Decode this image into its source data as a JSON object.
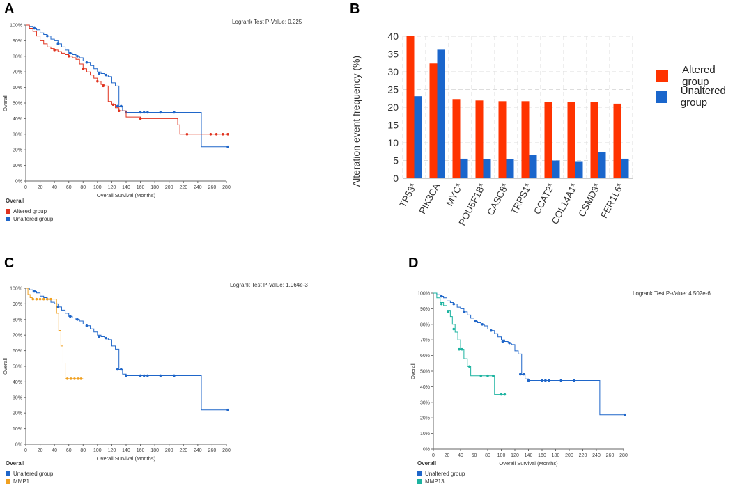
{
  "colors": {
    "altered": "#e0321e",
    "unaltered": "#1f66c9",
    "mmp1": "#f0a020",
    "mmp13": "#1cb3a0",
    "bar_altered": "#ff3300",
    "bar_unaltered": "#1a66cc",
    "grid": "#dddddd",
    "axis": "#666666"
  },
  "panels": {
    "A": {
      "letter": "A",
      "pvalue": "Logrank Test P-Value: 0.225",
      "legend_title": "Overall",
      "legend": [
        {
          "label": "Altered group",
          "color_key": "altered"
        },
        {
          "label": "Unaltered group",
          "color_key": "unaltered"
        }
      ]
    },
    "B": {
      "letter": "B",
      "legend": [
        {
          "label": "Altered group",
          "color_key": "bar_altered"
        },
        {
          "label": "Unaltered group",
          "color_key": "bar_unaltered"
        }
      ]
    },
    "C": {
      "letter": "C",
      "pvalue": "Logrank Test P-Value: 1.964e-3",
      "legend_title": "Overall",
      "legend": [
        {
          "label": "Unaltered group",
          "color_key": "unaltered"
        },
        {
          "label": "MMP1",
          "color_key": "mmp1"
        }
      ]
    },
    "D": {
      "letter": "D",
      "pvalue": "Logrank Test P-Value: 4.502e-6",
      "legend_title": "Overall",
      "legend": [
        {
          "label": "Unaltered group",
          "color_key": "unaltered"
        },
        {
          "label": "MMP13",
          "color_key": "mmp13"
        }
      ]
    }
  },
  "chart_data": [
    {
      "id": "A",
      "type": "line",
      "title": "",
      "xlabel": "Overall Survival (Months)",
      "ylabel": "Overall",
      "xlim": [
        0,
        280
      ],
      "ylim": [
        0,
        100
      ],
      "xticks": [
        0,
        20,
        40,
        60,
        80,
        100,
        120,
        140,
        160,
        180,
        200,
        220,
        240,
        260,
        280
      ],
      "yticks": [
        0,
        10,
        20,
        30,
        40,
        50,
        60,
        70,
        80,
        90,
        100
      ],
      "ytick_suffix": "%",
      "series": [
        {
          "name": "Unaltered group",
          "color_key": "unaltered",
          "x": [
            0,
            5,
            10,
            15,
            20,
            25,
            30,
            35,
            40,
            45,
            50,
            55,
            60,
            65,
            70,
            75,
            80,
            85,
            90,
            95,
            100,
            105,
            110,
            115,
            120,
            125,
            130,
            135,
            140,
            160,
            200,
            245,
            282
          ],
          "y": [
            100,
            99,
            98,
            97,
            95,
            94,
            93,
            91,
            90,
            88,
            86,
            84,
            82,
            81,
            80,
            79,
            77,
            76,
            74,
            72,
            70,
            69,
            68,
            67,
            63,
            61,
            48,
            45,
            44,
            44,
            44,
            22,
            22
          ],
          "censors": [
            [
              12,
              98
            ],
            [
              30,
              93
            ],
            [
              45,
              88
            ],
            [
              62,
              82
            ],
            [
              72,
              80
            ],
            [
              85,
              76
            ],
            [
              102,
              69
            ],
            [
              112,
              68
            ],
            [
              128,
              48
            ],
            [
              133,
              48
            ],
            [
              140,
              44
            ],
            [
              160,
              44
            ],
            [
              165,
              44
            ],
            [
              170,
              44
            ],
            [
              188,
              44
            ],
            [
              207,
              44
            ],
            [
              282,
              22
            ]
          ]
        },
        {
          "name": "Altered group",
          "color_key": "altered",
          "x": [
            0,
            5,
            10,
            15,
            20,
            25,
            30,
            35,
            40,
            45,
            50,
            55,
            60,
            65,
            70,
            75,
            80,
            85,
            90,
            95,
            100,
            105,
            110,
            115,
            120,
            125,
            130,
            140,
            160,
            200,
            212,
            215,
            245,
            282
          ],
          "y": [
            100,
            98,
            96,
            93,
            90,
            88,
            86,
            85,
            84,
            83,
            82,
            81,
            80,
            79,
            78,
            75,
            72,
            70,
            68,
            66,
            64,
            62,
            61,
            51,
            49,
            47,
            45,
            41,
            40,
            40,
            36,
            30,
            30,
            30
          ],
          "censors": [
            [
              40,
              84
            ],
            [
              60,
              80
            ],
            [
              80,
              72
            ],
            [
              100,
              64
            ],
            [
              108,
              61
            ],
            [
              122,
              49
            ],
            [
              130,
              45
            ],
            [
              160,
              40
            ],
            [
              225,
              30
            ],
            [
              258,
              30
            ],
            [
              266,
              30
            ],
            [
              275,
              30
            ],
            [
              282,
              30
            ]
          ]
        }
      ]
    },
    {
      "id": "B",
      "type": "bar",
      "title": "",
      "xlabel": "",
      "ylabel": "Alteration event frequency (%)",
      "ylim": [
        0,
        40
      ],
      "yticks": [
        0,
        5,
        10,
        15,
        20,
        25,
        30,
        35,
        40
      ],
      "categories": [
        "TP53*",
        "PIK3CA",
        "MYC*",
        "POU5F1B*",
        "CASC8*",
        "TRPS1*",
        "CCAT2*",
        "COL14A1*",
        "CSMD3*",
        "FER1L6*"
      ],
      "series": [
        {
          "name": "Altered group",
          "color_key": "bar_altered",
          "values": [
            40.0,
            32.3,
            22.3,
            21.9,
            21.7,
            21.7,
            21.5,
            21.4,
            21.4,
            21.0
          ]
        },
        {
          "name": "Unaltered group",
          "color_key": "bar_unaltered",
          "values": [
            23.1,
            36.2,
            5.5,
            5.3,
            5.3,
            6.5,
            5.0,
            4.8,
            7.4,
            5.5
          ]
        }
      ]
    },
    {
      "id": "C",
      "type": "line",
      "title": "",
      "xlabel": "Overall Survival (Months)",
      "ylabel": "Overall",
      "xlim": [
        0,
        280
      ],
      "ylim": [
        0,
        100
      ],
      "xticks": [
        0,
        20,
        40,
        60,
        80,
        100,
        120,
        140,
        160,
        180,
        200,
        220,
        240,
        260,
        280
      ],
      "yticks": [
        0,
        10,
        20,
        30,
        40,
        50,
        60,
        70,
        80,
        90,
        100
      ],
      "ytick_suffix": "%",
      "series": [
        {
          "name": "Unaltered group",
          "color_key": "unaltered",
          "x": [
            0,
            5,
            10,
            15,
            20,
            25,
            30,
            35,
            40,
            45,
            50,
            55,
            60,
            65,
            70,
            75,
            80,
            85,
            90,
            95,
            100,
            105,
            110,
            115,
            120,
            125,
            130,
            135,
            140,
            160,
            200,
            245,
            282
          ],
          "y": [
            100,
            99,
            98,
            97,
            95,
            94,
            93,
            91,
            90,
            88,
            86,
            84,
            82,
            81,
            80,
            79,
            77,
            76,
            74,
            72,
            70,
            69,
            68,
            67,
            63,
            61,
            48,
            45,
            44,
            44,
            44,
            22,
            22
          ],
          "censors": [
            [
              12,
              98
            ],
            [
              30,
              93
            ],
            [
              45,
              88
            ],
            [
              62,
              82
            ],
            [
              72,
              80
            ],
            [
              85,
              76
            ],
            [
              102,
              69
            ],
            [
              112,
              68
            ],
            [
              128,
              48
            ],
            [
              133,
              48
            ],
            [
              140,
              44
            ],
            [
              160,
              44
            ],
            [
              165,
              44
            ],
            [
              170,
              44
            ],
            [
              188,
              44
            ],
            [
              207,
              44
            ],
            [
              282,
              22
            ]
          ]
        },
        {
          "name": "MMP1",
          "color_key": "mmp1",
          "x": [
            0,
            3,
            6,
            9,
            40,
            43,
            46,
            49,
            52,
            55,
            80
          ],
          "y": [
            100,
            96,
            94,
            93,
            93,
            84,
            73,
            63,
            52,
            42,
            42
          ],
          "censors": [
            [
              10,
              93
            ],
            [
              15,
              93
            ],
            [
              20,
              93
            ],
            [
              25,
              93
            ],
            [
              30,
              93
            ],
            [
              35,
              93
            ],
            [
              58,
              42
            ],
            [
              63,
              42
            ],
            [
              68,
              42
            ],
            [
              73,
              42
            ],
            [
              77,
              42
            ]
          ]
        }
      ]
    },
    {
      "id": "D",
      "type": "line",
      "title": "",
      "xlabel": "Overall Survival (Months)",
      "ylabel": "Overall",
      "xlim": [
        0,
        280
      ],
      "ylim": [
        0,
        100
      ],
      "xticks": [
        0,
        20,
        40,
        60,
        80,
        100,
        120,
        140,
        160,
        180,
        200,
        220,
        240,
        260,
        280
      ],
      "yticks": [
        0,
        10,
        20,
        30,
        40,
        50,
        60,
        70,
        80,
        90,
        100
      ],
      "ytick_suffix": "%",
      "series": [
        {
          "name": "Unaltered group",
          "color_key": "unaltered",
          "x": [
            0,
            5,
            10,
            15,
            20,
            25,
            30,
            35,
            40,
            45,
            50,
            55,
            60,
            65,
            70,
            75,
            80,
            85,
            90,
            95,
            100,
            105,
            110,
            115,
            120,
            125,
            130,
            135,
            140,
            160,
            200,
            245,
            282
          ],
          "y": [
            100,
            99,
            98,
            97,
            95,
            94,
            93,
            91,
            90,
            88,
            86,
            84,
            82,
            81,
            80,
            79,
            77,
            76,
            74,
            72,
            70,
            69,
            68,
            67,
            63,
            61,
            48,
            45,
            44,
            44,
            44,
            22,
            22
          ],
          "censors": [
            [
              12,
              98
            ],
            [
              30,
              93
            ],
            [
              45,
              88
            ],
            [
              62,
              82
            ],
            [
              72,
              80
            ],
            [
              85,
              76
            ],
            [
              102,
              69
            ],
            [
              112,
              68
            ],
            [
              128,
              48
            ],
            [
              133,
              48
            ],
            [
              140,
              44
            ],
            [
              160,
              44
            ],
            [
              165,
              44
            ],
            [
              170,
              44
            ],
            [
              188,
              44
            ],
            [
              207,
              44
            ],
            [
              282,
              22
            ]
          ]
        },
        {
          "name": "MMP13",
          "color_key": "mmp13",
          "x": [
            0,
            5,
            10,
            15,
            20,
            25,
            28,
            32,
            36,
            40,
            45,
            50,
            55,
            60,
            90,
            105
          ],
          "y": [
            100,
            97,
            94,
            92,
            89,
            85,
            80,
            75,
            70,
            64,
            58,
            53,
            47,
            47,
            35,
            35
          ],
          "censors": [
            [
              12,
              93
            ],
            [
              22,
              88
            ],
            [
              30,
              77
            ],
            [
              38,
              64
            ],
            [
              42,
              64
            ],
            [
              53,
              53
            ],
            [
              70,
              47
            ],
            [
              80,
              47
            ],
            [
              88,
              47
            ],
            [
              100,
              35
            ],
            [
              105,
              35
            ]
          ]
        }
      ]
    }
  ]
}
